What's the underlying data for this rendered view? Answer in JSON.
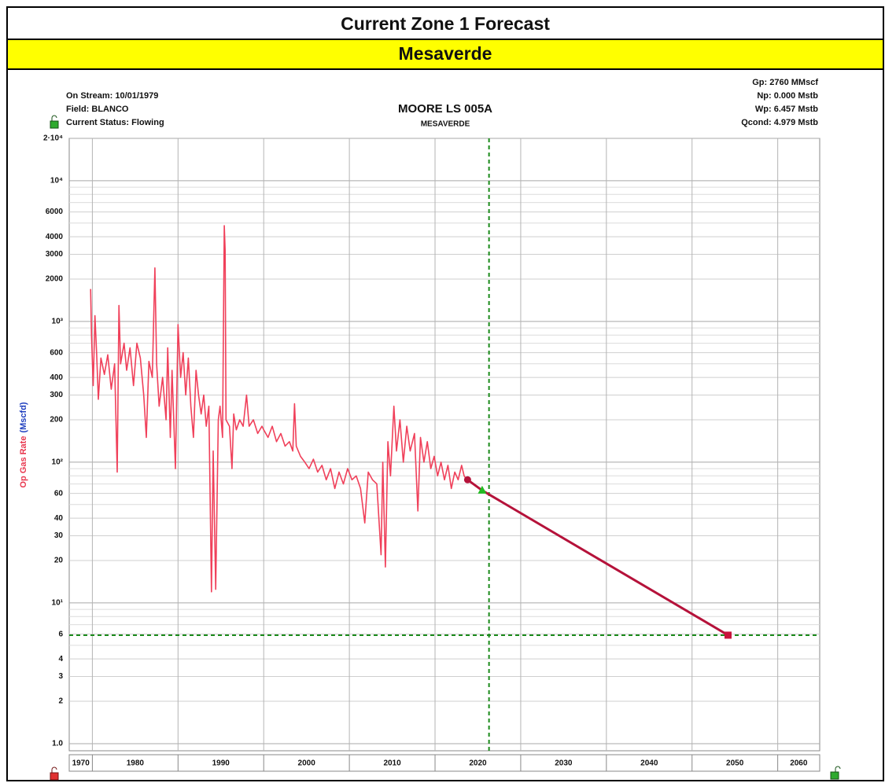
{
  "page": {
    "title": "Current Zone 1 Forecast",
    "subtitle": "Mesaverde"
  },
  "chart_data": {
    "type": "line",
    "title": "MOORE LS 005A",
    "subtitle": "MESAVERDE",
    "info_left": [
      "On Stream: 10/01/1979",
      "Field: BLANCO",
      "Current Status: Flowing"
    ],
    "info_right": [
      "Gp: 2760 MMscf",
      "Np: 0.000 Mstb",
      "Wp: 6.457 Mstb",
      "Qcond: 4.979 Mstb"
    ],
    "ylabel": [
      "Op Gas Rate",
      "(Mscfd)"
    ],
    "ylabel_colors": [
      "#e8384f",
      "#1f3fbf"
    ],
    "log_y": true,
    "grid": true,
    "xlim": [
      1977.3,
      2064.9
    ],
    "xticks": [
      1970,
      1980,
      1990,
      2000,
      2010,
      2020,
      2030,
      2040,
      2050,
      2060
    ],
    "ylim": [
      0.89,
      20000
    ],
    "yticks": [
      {
        "value": 20000,
        "label": "2·10⁴"
      },
      {
        "value": 10000,
        "label": "10⁴"
      },
      6000,
      4000,
      3000,
      2000,
      {
        "value": 1000,
        "label": "10³"
      },
      600,
      400,
      300,
      200,
      {
        "value": 100,
        "label": "10²"
      },
      60,
      40,
      30,
      20,
      {
        "value": 10,
        "label": "10¹"
      },
      6,
      4,
      3,
      2,
      {
        "value": 1,
        "label": "1.0"
      }
    ],
    "yminor_ticks": [
      5,
      7,
      8,
      9,
      50,
      70,
      80,
      90,
      500,
      700,
      800,
      900,
      5000,
      7000,
      8000,
      9000
    ],
    "series": [
      {
        "color": "#f0405a",
        "x": [
          1979.8,
          1979.9,
          1980.1,
          1980.3,
          1980.5,
          1980.7,
          1981.0,
          1981.4,
          1981.8,
          1982.2,
          1982.6,
          1982.9,
          1983.1,
          1983.3,
          1983.7,
          1984.0,
          1984.4,
          1984.8,
          1985.2,
          1985.6,
          1986.0,
          1986.3,
          1986.6,
          1987.0,
          1987.3,
          1987.5,
          1987.8,
          1988.2,
          1988.6,
          1988.8,
          1989.1,
          1989.3,
          1989.7,
          1990.0,
          1990.3,
          1990.6,
          1990.9,
          1991.2,
          1991.5,
          1991.8,
          1992.1,
          1992.4,
          1992.7,
          1993.0,
          1993.3,
          1993.6,
          1993.9,
          1994.1,
          1994.4,
          1994.7,
          1994.9,
          1995.2,
          1995.4,
          1995.5,
          1995.6,
          1996.0,
          1996.3,
          1996.5,
          1996.8,
          1997.2,
          1997.6,
          1998.0,
          1998.3,
          1998.8,
          1999.3,
          1999.8,
          2000.0,
          2000.5,
          2001.0,
          2001.5,
          2002.0,
          2002.5,
          2003.0,
          2003.4,
          2003.6,
          2003.8,
          2004.3,
          2004.8,
          2005.3,
          2005.8,
          2006.3,
          2006.8,
          2007.3,
          2007.8,
          2008.3,
          2008.8,
          2009.3,
          2009.8,
          2010.3,
          2010.8,
          2011.3,
          2011.8,
          2012.2,
          2012.7,
          2013.2,
          2013.7,
          2013.9,
          2014.2,
          2014.5,
          2014.8,
          2015.2,
          2015.5,
          2015.9,
          2016.3,
          2016.7,
          2017.1,
          2017.6,
          2018.0,
          2018.3,
          2018.7,
          2019.1,
          2019.5,
          2019.9,
          2020.3,
          2020.7,
          2021.1,
          2021.5,
          2021.9,
          2022.3,
          2022.7,
          2023.1,
          2023.4,
          2023.7
        ],
        "values": [
          1700,
          800,
          350,
          1100,
          600,
          280,
          550,
          420,
          580,
          330,
          500,
          85,
          1300,
          500,
          700,
          450,
          650,
          350,
          700,
          550,
          300,
          150,
          520,
          400,
          2400,
          500,
          250,
          400,
          200,
          650,
          150,
          450,
          90,
          950,
          400,
          600,
          300,
          550,
          250,
          150,
          450,
          300,
          220,
          300,
          180,
          250,
          12,
          120,
          12.5,
          200,
          250,
          150,
          4800,
          3200,
          200,
          180,
          90,
          220,
          170,
          200,
          180,
          300,
          180,
          200,
          160,
          180,
          170,
          150,
          180,
          140,
          160,
          130,
          140,
          120,
          260,
          130,
          110,
          100,
          90,
          105,
          85,
          95,
          75,
          90,
          65,
          85,
          70,
          90,
          75,
          80,
          65,
          37,
          85,
          75,
          70,
          22,
          100,
          18,
          140,
          80,
          250,
          120,
          200,
          100,
          180,
          120,
          160,
          45,
          150,
          100,
          140,
          90,
          110,
          80,
          100,
          75,
          95,
          65,
          85,
          75,
          95,
          80,
          75
        ]
      },
      {
        "color": "#b5123a",
        "x": [
          2023.8,
          2025.5,
          2054.2
        ],
        "values": [
          75,
          63,
          5.9
        ]
      }
    ],
    "markers": [
      {
        "shape": "circle",
        "color": "#b5123a",
        "x": 2023.8,
        "value": 75
      },
      {
        "shape": "triangle",
        "color": "#22bb22",
        "x": 2025.5,
        "value": 63
      },
      {
        "shape": "square",
        "color": "#c8143c",
        "x": 2054.2,
        "value": 5.9
      }
    ],
    "ref_color": "#1a8a1a",
    "vline": 2026.3,
    "hline": 5.9
  }
}
